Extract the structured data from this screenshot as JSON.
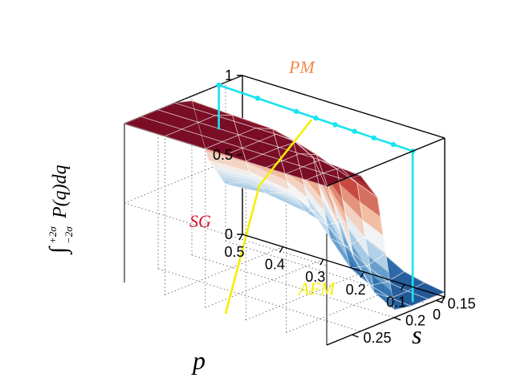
{
  "colors": {
    "pm": "#7a0e26",
    "mid": "#f2f2f2",
    "afm": "#1d4f8e",
    "cyan": "#17e4ee",
    "yellow": "#f6ee00"
  },
  "chart_data": {
    "type": "surface",
    "title": "",
    "xlabel": "p",
    "ylabel": "s",
    "zlabel": "∫_{−2σ}^{+2σ} P(q)dq",
    "zlabel_parts": {
      "integral": "∫",
      "upper": "+2σ",
      "lower": "−2σ",
      "body": "P(q)dq"
    },
    "x_ticks": [
      "0.5",
      "0.4",
      "0.3",
      "0.2",
      "0.1",
      "0"
    ],
    "y_ticks": [
      "0.15",
      "0.2",
      "0.25"
    ],
    "z_ticks": [
      "0",
      "0.5",
      "1"
    ],
    "xlim": [
      0.5,
      0
    ],
    "ylim": [
      0.14,
      0.28
    ],
    "zlim": [
      0,
      1
    ],
    "grid": true,
    "regions": [
      {
        "label": "PM",
        "z": 1.0
      },
      {
        "label": "SG",
        "z": 0.5
      },
      {
        "label": "AFM",
        "z": 0.1
      }
    ],
    "p_grid": [
      0.5,
      0.4,
      0.3,
      0.25,
      0.2,
      0.15,
      0.1,
      0.05,
      0
    ],
    "s_grid": [
      0.14,
      0.16,
      0.18,
      0.2,
      0.22,
      0.24,
      0.26,
      0.28
    ],
    "z_grid": [
      [
        0.33,
        0.36,
        0.55,
        0.97,
        1.0,
        1.0,
        1.0,
        1.0
      ],
      [
        0.34,
        0.38,
        0.56,
        0.96,
        1.0,
        1.0,
        1.0,
        1.0
      ],
      [
        0.32,
        0.34,
        0.52,
        0.95,
        1.0,
        1.0,
        1.0,
        1.0
      ],
      [
        0.28,
        0.3,
        0.45,
        0.92,
        1.0,
        1.0,
        1.0,
        1.0
      ],
      [
        0.22,
        0.2,
        0.3,
        0.85,
        0.99,
        1.0,
        1.0,
        1.0
      ],
      [
        0.15,
        0.12,
        0.15,
        0.6,
        0.95,
        1.0,
        1.0,
        1.0
      ],
      [
        0.08,
        0.06,
        0.08,
        0.3,
        0.9,
        1.0,
        1.0,
        1.0
      ],
      [
        0.05,
        0.04,
        0.04,
        0.12,
        0.85,
        0.99,
        1.0,
        1.0
      ],
      [
        0.03,
        0.03,
        0.03,
        0.05,
        0.8,
        0.98,
        1.0,
        1.0
      ]
    ],
    "lines": [
      {
        "name": "PM boundary",
        "color": "cyan",
        "p": [
          0.5,
          0.4,
          0.3,
          0.25,
          0.2,
          0.15,
          0.1,
          0.05,
          0
        ],
        "s": [
          0.168,
          0.17,
          0.172,
          0.173,
          0.174,
          0.175,
          0.176,
          0.177,
          0.178
        ]
      },
      {
        "name": "SG-AFM boundary",
        "color": "yellow",
        "p": [
          0.25,
          0.25,
          0.25
        ],
        "s": [
          0.178,
          0.24,
          0.28
        ]
      }
    ]
  }
}
